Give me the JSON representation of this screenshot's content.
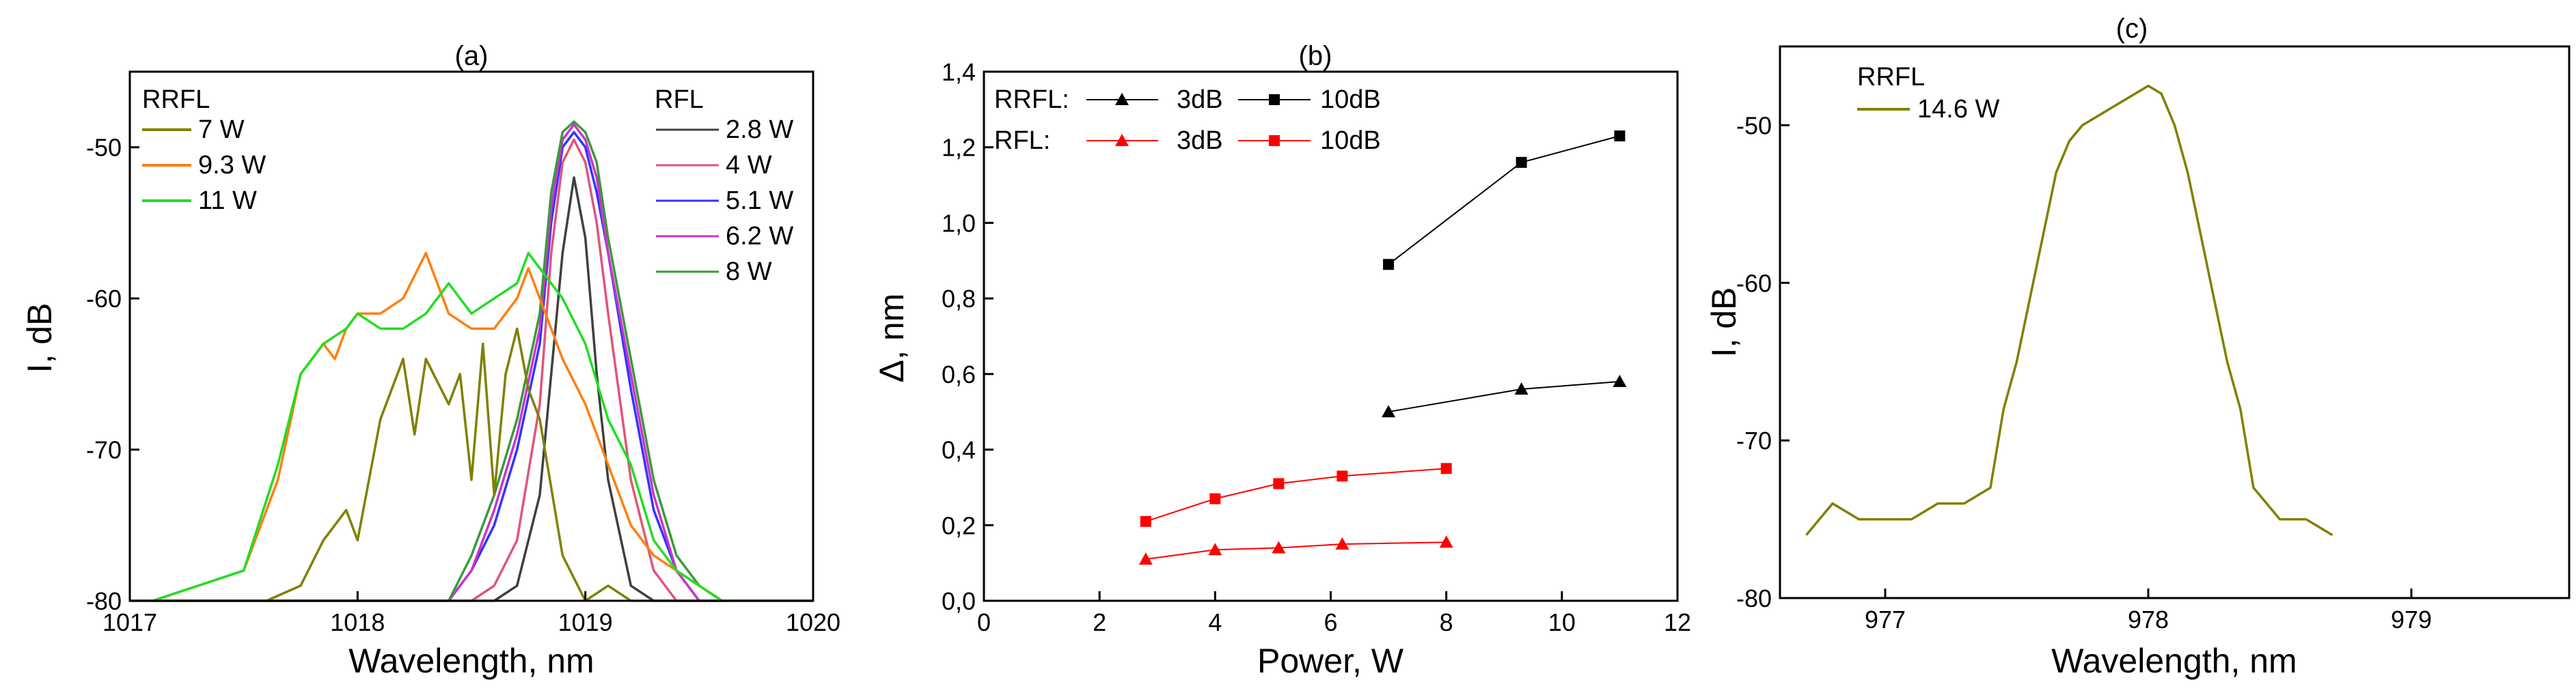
{
  "chart_data": [
    {
      "type": "line",
      "panel_label": "(a)",
      "xlabel": "Wavelength, nm",
      "ylabel": "I, dB",
      "xlim": [
        1017,
        1020
      ],
      "ylim": [
        -80,
        -45
      ],
      "xticks": [
        "1017",
        "1018",
        "1019",
        "1020"
      ],
      "yticks": [
        "-80",
        "-70",
        "-60",
        "-50"
      ],
      "legend_groups": [
        {
          "title": "RRFL",
          "series": [
            {
              "name": "7 W",
              "color": "#808000",
              "x": [
                1017.0,
                1017.3,
                1017.6,
                1017.75,
                1017.85,
                1017.95,
                1018.0,
                1018.1,
                1018.2,
                1018.25,
                1018.3,
                1018.4,
                1018.45,
                1018.5,
                1018.55,
                1018.6,
                1018.65,
                1018.7,
                1018.75,
                1018.8,
                1018.9,
                1019.0,
                1019.1,
                1019.2,
                1019.3,
                1019.5,
                1019.8,
                1020.0
              ],
              "y": [
                -80,
                -80,
                -80,
                -79,
                -76,
                -74,
                -76,
                -68,
                -64,
                -69,
                -64,
                -67,
                -65,
                -72,
                -63,
                -73,
                -65,
                -62,
                -66,
                -68,
                -77,
                -80,
                -79,
                -80,
                -80,
                -80,
                -80,
                -80
              ]
            },
            {
              "name": "9.3 W",
              "color": "#ff7f0e",
              "x": [
                1017.0,
                1017.1,
                1017.3,
                1017.5,
                1017.65,
                1017.75,
                1017.85,
                1017.9,
                1017.95,
                1018.0,
                1018.1,
                1018.2,
                1018.3,
                1018.4,
                1018.5,
                1018.6,
                1018.7,
                1018.75,
                1018.8,
                1018.85,
                1018.9,
                1019.0,
                1019.1,
                1019.2,
                1019.3,
                1019.4,
                1019.5,
                1019.6,
                1020.0
              ],
              "y": [
                -80,
                -80,
                -79,
                -78,
                -72,
                -65,
                -63,
                -64,
                -62,
                -61,
                -61,
                -60,
                -57,
                -61,
                -62,
                -62,
                -60,
                -58,
                -60,
                -62,
                -64,
                -67,
                -71,
                -75,
                -77,
                -78,
                -79,
                -80,
                -80
              ]
            },
            {
              "name": "11 W",
              "color": "#22dd22",
              "x": [
                1017.0,
                1017.1,
                1017.3,
                1017.5,
                1017.65,
                1017.75,
                1017.85,
                1017.95,
                1018.0,
                1018.1,
                1018.2,
                1018.3,
                1018.4,
                1018.5,
                1018.6,
                1018.7,
                1018.75,
                1018.8,
                1018.9,
                1019.0,
                1019.1,
                1019.2,
                1019.3,
                1019.4,
                1019.5,
                1019.6,
                1020.0
              ],
              "y": [
                -80,
                -80,
                -79,
                -78,
                -71,
                -65,
                -63,
                -62,
                -61,
                -62,
                -62,
                -61,
                -59,
                -61,
                -60,
                -59,
                -57,
                -58,
                -60,
                -63,
                -68,
                -71,
                -76,
                -78,
                -79,
                -80,
                -80
              ]
            }
          ]
        },
        {
          "title": "RFL",
          "series": [
            {
              "name": "2.8 W",
              "color": "#404040",
              "x": [
                1017.0,
                1018.6,
                1018.7,
                1018.8,
                1018.85,
                1018.9,
                1018.95,
                1019.0,
                1019.05,
                1019.1,
                1019.2,
                1019.3,
                1020.0
              ],
              "y": [
                -80,
                -80,
                -79,
                -73,
                -65,
                -57,
                -52,
                -56,
                -65,
                -72,
                -79,
                -80,
                -80
              ]
            },
            {
              "name": "4 W",
              "color": "#e0557a",
              "x": [
                1017.0,
                1018.5,
                1018.6,
                1018.7,
                1018.8,
                1018.85,
                1018.9,
                1018.95,
                1019.0,
                1019.05,
                1019.1,
                1019.2,
                1019.3,
                1019.4,
                1020.0
              ],
              "y": [
                -80,
                -80,
                -79,
                -76,
                -67,
                -57,
                -51,
                -49.5,
                -51,
                -55,
                -61,
                -72,
                -78,
                -80,
                -80
              ]
            },
            {
              "name": "5.1 W",
              "color": "#3333ff",
              "x": [
                1017.0,
                1018.4,
                1018.5,
                1018.6,
                1018.7,
                1018.8,
                1018.85,
                1018.9,
                1018.95,
                1019.0,
                1019.05,
                1019.1,
                1019.2,
                1019.3,
                1019.4,
                1019.5,
                1020.0
              ],
              "y": [
                -80,
                -80,
                -78,
                -75,
                -70,
                -63,
                -55,
                -50,
                -49,
                -50,
                -53,
                -57,
                -66,
                -74,
                -78,
                -80,
                -80
              ]
            },
            {
              "name": "6.2 W",
              "color": "#cc33cc",
              "x": [
                1017.0,
                1018.4,
                1018.5,
                1018.6,
                1018.7,
                1018.8,
                1018.85,
                1018.9,
                1018.95,
                1019.0,
                1019.05,
                1019.1,
                1019.2,
                1019.3,
                1019.4,
                1019.5,
                1020.0
              ],
              "y": [
                -80,
                -80,
                -78,
                -74,
                -69,
                -62,
                -54,
                -49.5,
                -48.5,
                -49.5,
                -52,
                -57,
                -65,
                -73,
                -78,
                -80,
                -80
              ]
            },
            {
              "name": "8 W",
              "color": "#3a9a3a",
              "x": [
                1017.0,
                1018.4,
                1018.5,
                1018.6,
                1018.7,
                1018.8,
                1018.85,
                1018.9,
                1018.95,
                1019.0,
                1019.05,
                1019.1,
                1019.2,
                1019.3,
                1019.4,
                1019.5,
                1019.6,
                1020.0
              ],
              "y": [
                -80,
                -80,
                -77,
                -73,
                -68,
                -61,
                -53,
                -49,
                -48.3,
                -49,
                -51,
                -56,
                -64,
                -72,
                -77,
                -79,
                -80,
                -80
              ]
            }
          ]
        }
      ]
    },
    {
      "type": "line",
      "panel_label": "(b)",
      "xlabel": "Power, W",
      "ylabel": "Δ, nm",
      "xlim": [
        0,
        12
      ],
      "ylim": [
        0,
        1.4
      ],
      "xticks": [
        "0",
        "2",
        "4",
        "6",
        "8",
        "10",
        "12"
      ],
      "yticks": [
        "0,0",
        "0,2",
        "0,4",
        "0,6",
        "0,8",
        "1,0",
        "1,2",
        "1,4"
      ],
      "legend_rows": [
        {
          "prefix": "RRFL:",
          "entries": [
            "3dB",
            "10dB"
          ]
        },
        {
          "prefix": "RFL:",
          "entries": [
            "3dB",
            "10dB"
          ]
        }
      ],
      "series": [
        {
          "name": "RRFL 3dB",
          "color": "#000000",
          "marker": "triangle",
          "x": [
            7,
            9.3,
            11
          ],
          "y": [
            0.5,
            0.56,
            0.58
          ]
        },
        {
          "name": "RRFL 10dB",
          "color": "#000000",
          "marker": "square",
          "x": [
            7,
            9.3,
            11
          ],
          "y": [
            0.89,
            1.16,
            1.23
          ]
        },
        {
          "name": "RFL 3dB",
          "color": "#ff0000",
          "marker": "triangle",
          "x": [
            2.8,
            4,
            5.1,
            6.2,
            8
          ],
          "y": [
            0.11,
            0.135,
            0.14,
            0.15,
            0.155
          ]
        },
        {
          "name": "RFL 10dB",
          "color": "#ff0000",
          "marker": "square",
          "x": [
            2.8,
            4,
            5.1,
            6.2,
            8
          ],
          "y": [
            0.21,
            0.27,
            0.31,
            0.33,
            0.35
          ]
        }
      ]
    },
    {
      "type": "line",
      "panel_label": "(c)",
      "xlabel": "Wavelength, nm",
      "ylabel": "I, dB",
      "xlim": [
        976.6,
        979.6
      ],
      "ylim": [
        -80,
        -45
      ],
      "xticks": [
        "977",
        "978",
        "979"
      ],
      "yticks": [
        "-80",
        "-70",
        "-60",
        "-50"
      ],
      "legend_title": "RRFL",
      "series": [
        {
          "name": "14.6 W",
          "color": "#808000",
          "x": [
            976.7,
            976.8,
            976.9,
            977.0,
            977.1,
            977.2,
            977.3,
            977.4,
            977.45,
            977.5,
            977.55,
            977.6,
            977.65,
            977.7,
            977.75,
            977.8,
            977.85,
            977.9,
            977.95,
            978.0,
            978.05,
            978.1,
            978.15,
            978.2,
            978.25,
            978.3,
            978.35,
            978.4,
            978.45,
            978.5,
            978.55,
            978.6,
            978.7
          ],
          "y": [
            -76,
            -74,
            -75,
            -75,
            -75,
            -74,
            -74,
            -73,
            -68,
            -65,
            -61,
            -57,
            -53,
            -51,
            -50,
            -49.5,
            -49,
            -48.5,
            -48,
            -47.5,
            -48,
            -50,
            -53,
            -57,
            -61,
            -65,
            -68,
            -73,
            -74,
            -75,
            -75,
            -75,
            -76
          ]
        }
      ]
    }
  ]
}
